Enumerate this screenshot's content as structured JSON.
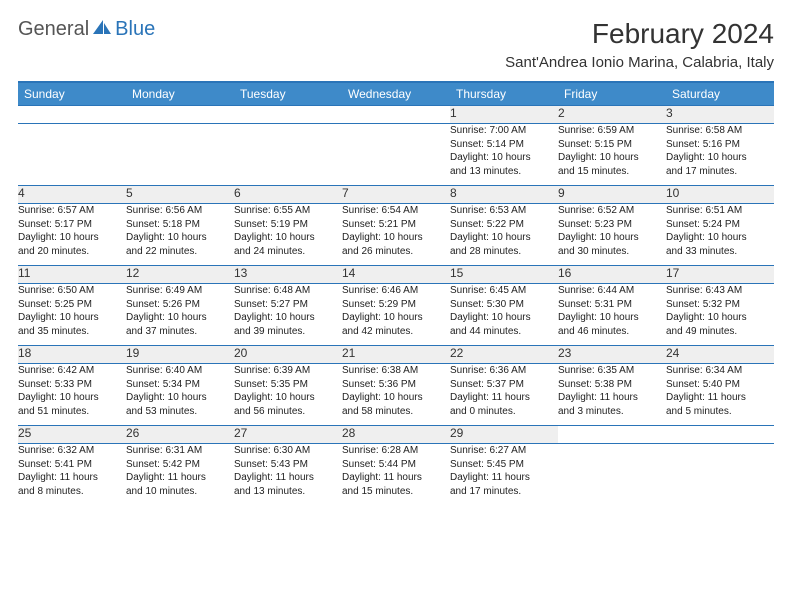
{
  "logo": {
    "general": "General",
    "blue": "Blue"
  },
  "title": "February 2024",
  "location": "Sant'Andrea Ionio Marina, Calabria, Italy",
  "colors": {
    "header_bg": "#3e8ac9",
    "border": "#2a74b8",
    "daynum_bg": "#efefef",
    "text": "#333333"
  },
  "weekdays": [
    "Sunday",
    "Monday",
    "Tuesday",
    "Wednesday",
    "Thursday",
    "Friday",
    "Saturday"
  ],
  "weeks": [
    [
      null,
      null,
      null,
      null,
      {
        "n": "1",
        "sr": "Sunrise: 7:00 AM",
        "ss": "Sunset: 5:14 PM",
        "dl": "Daylight: 10 hours and 13 minutes."
      },
      {
        "n": "2",
        "sr": "Sunrise: 6:59 AM",
        "ss": "Sunset: 5:15 PM",
        "dl": "Daylight: 10 hours and 15 minutes."
      },
      {
        "n": "3",
        "sr": "Sunrise: 6:58 AM",
        "ss": "Sunset: 5:16 PM",
        "dl": "Daylight: 10 hours and 17 minutes."
      }
    ],
    [
      {
        "n": "4",
        "sr": "Sunrise: 6:57 AM",
        "ss": "Sunset: 5:17 PM",
        "dl": "Daylight: 10 hours and 20 minutes."
      },
      {
        "n": "5",
        "sr": "Sunrise: 6:56 AM",
        "ss": "Sunset: 5:18 PM",
        "dl": "Daylight: 10 hours and 22 minutes."
      },
      {
        "n": "6",
        "sr": "Sunrise: 6:55 AM",
        "ss": "Sunset: 5:19 PM",
        "dl": "Daylight: 10 hours and 24 minutes."
      },
      {
        "n": "7",
        "sr": "Sunrise: 6:54 AM",
        "ss": "Sunset: 5:21 PM",
        "dl": "Daylight: 10 hours and 26 minutes."
      },
      {
        "n": "8",
        "sr": "Sunrise: 6:53 AM",
        "ss": "Sunset: 5:22 PM",
        "dl": "Daylight: 10 hours and 28 minutes."
      },
      {
        "n": "9",
        "sr": "Sunrise: 6:52 AM",
        "ss": "Sunset: 5:23 PM",
        "dl": "Daylight: 10 hours and 30 minutes."
      },
      {
        "n": "10",
        "sr": "Sunrise: 6:51 AM",
        "ss": "Sunset: 5:24 PM",
        "dl": "Daylight: 10 hours and 33 minutes."
      }
    ],
    [
      {
        "n": "11",
        "sr": "Sunrise: 6:50 AM",
        "ss": "Sunset: 5:25 PM",
        "dl": "Daylight: 10 hours and 35 minutes."
      },
      {
        "n": "12",
        "sr": "Sunrise: 6:49 AM",
        "ss": "Sunset: 5:26 PM",
        "dl": "Daylight: 10 hours and 37 minutes."
      },
      {
        "n": "13",
        "sr": "Sunrise: 6:48 AM",
        "ss": "Sunset: 5:27 PM",
        "dl": "Daylight: 10 hours and 39 minutes."
      },
      {
        "n": "14",
        "sr": "Sunrise: 6:46 AM",
        "ss": "Sunset: 5:29 PM",
        "dl": "Daylight: 10 hours and 42 minutes."
      },
      {
        "n": "15",
        "sr": "Sunrise: 6:45 AM",
        "ss": "Sunset: 5:30 PM",
        "dl": "Daylight: 10 hours and 44 minutes."
      },
      {
        "n": "16",
        "sr": "Sunrise: 6:44 AM",
        "ss": "Sunset: 5:31 PM",
        "dl": "Daylight: 10 hours and 46 minutes."
      },
      {
        "n": "17",
        "sr": "Sunrise: 6:43 AM",
        "ss": "Sunset: 5:32 PM",
        "dl": "Daylight: 10 hours and 49 minutes."
      }
    ],
    [
      {
        "n": "18",
        "sr": "Sunrise: 6:42 AM",
        "ss": "Sunset: 5:33 PM",
        "dl": "Daylight: 10 hours and 51 minutes."
      },
      {
        "n": "19",
        "sr": "Sunrise: 6:40 AM",
        "ss": "Sunset: 5:34 PM",
        "dl": "Daylight: 10 hours and 53 minutes."
      },
      {
        "n": "20",
        "sr": "Sunrise: 6:39 AM",
        "ss": "Sunset: 5:35 PM",
        "dl": "Daylight: 10 hours and 56 minutes."
      },
      {
        "n": "21",
        "sr": "Sunrise: 6:38 AM",
        "ss": "Sunset: 5:36 PM",
        "dl": "Daylight: 10 hours and 58 minutes."
      },
      {
        "n": "22",
        "sr": "Sunrise: 6:36 AM",
        "ss": "Sunset: 5:37 PM",
        "dl": "Daylight: 11 hours and 0 minutes."
      },
      {
        "n": "23",
        "sr": "Sunrise: 6:35 AM",
        "ss": "Sunset: 5:38 PM",
        "dl": "Daylight: 11 hours and 3 minutes."
      },
      {
        "n": "24",
        "sr": "Sunrise: 6:34 AM",
        "ss": "Sunset: 5:40 PM",
        "dl": "Daylight: 11 hours and 5 minutes."
      }
    ],
    [
      {
        "n": "25",
        "sr": "Sunrise: 6:32 AM",
        "ss": "Sunset: 5:41 PM",
        "dl": "Daylight: 11 hours and 8 minutes."
      },
      {
        "n": "26",
        "sr": "Sunrise: 6:31 AM",
        "ss": "Sunset: 5:42 PM",
        "dl": "Daylight: 11 hours and 10 minutes."
      },
      {
        "n": "27",
        "sr": "Sunrise: 6:30 AM",
        "ss": "Sunset: 5:43 PM",
        "dl": "Daylight: 11 hours and 13 minutes."
      },
      {
        "n": "28",
        "sr": "Sunrise: 6:28 AM",
        "ss": "Sunset: 5:44 PM",
        "dl": "Daylight: 11 hours and 15 minutes."
      },
      {
        "n": "29",
        "sr": "Sunrise: 6:27 AM",
        "ss": "Sunset: 5:45 PM",
        "dl": "Daylight: 11 hours and 17 minutes."
      },
      null,
      null
    ]
  ]
}
